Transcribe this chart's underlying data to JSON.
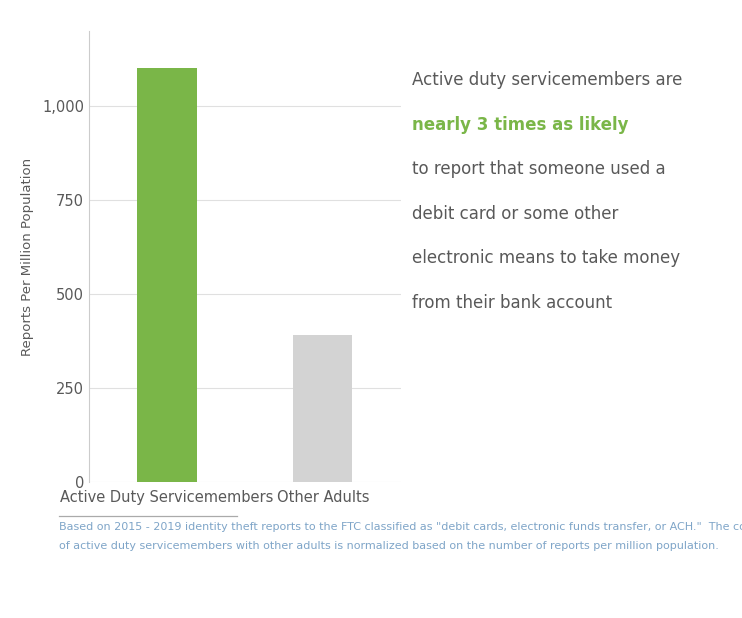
{
  "categories": [
    "Active Duty Servicemembers",
    "Other Adults"
  ],
  "values": [
    1100,
    390
  ],
  "bar_colors": [
    "#7ab648",
    "#d3d3d3"
  ],
  "ylabel": "Reports Per Million Population",
  "ylim": [
    0,
    1200
  ],
  "yticks": [
    0,
    250,
    500,
    750,
    1000
  ],
  "annotation_lines": [
    "Active duty servicemembers are",
    "nearly 3 times as likely",
    "to report that someone used a",
    "debit card or some other",
    "electronic means to take money",
    "from their bank account"
  ],
  "annotation_highlight_index": 1,
  "annotation_highlight_color": "#7ab648",
  "annotation_text_color": "#595959",
  "annotation_fontsize": 12.0,
  "footer_text_line1": "Based on 2015 - 2019 identity theft reports to the FTC classified as \"debit cards, electronic funds transfer, or ACH.\"  The comparison",
  "footer_text_line2": "of active duty servicemembers with other adults is normalized based on the number of reports per million population.",
  "footer_color": "#7fa5c8",
  "footer_fontsize": 8.0,
  "background_color": "#ffffff",
  "bar_width": 0.38,
  "ylabel_fontsize": 9.5,
  "tick_fontsize": 10.5,
  "xlabel_fontsize": 10.5,
  "tick_color": "#595959",
  "spine_color": "#cccccc",
  "grid_color": "#e0e0e0"
}
